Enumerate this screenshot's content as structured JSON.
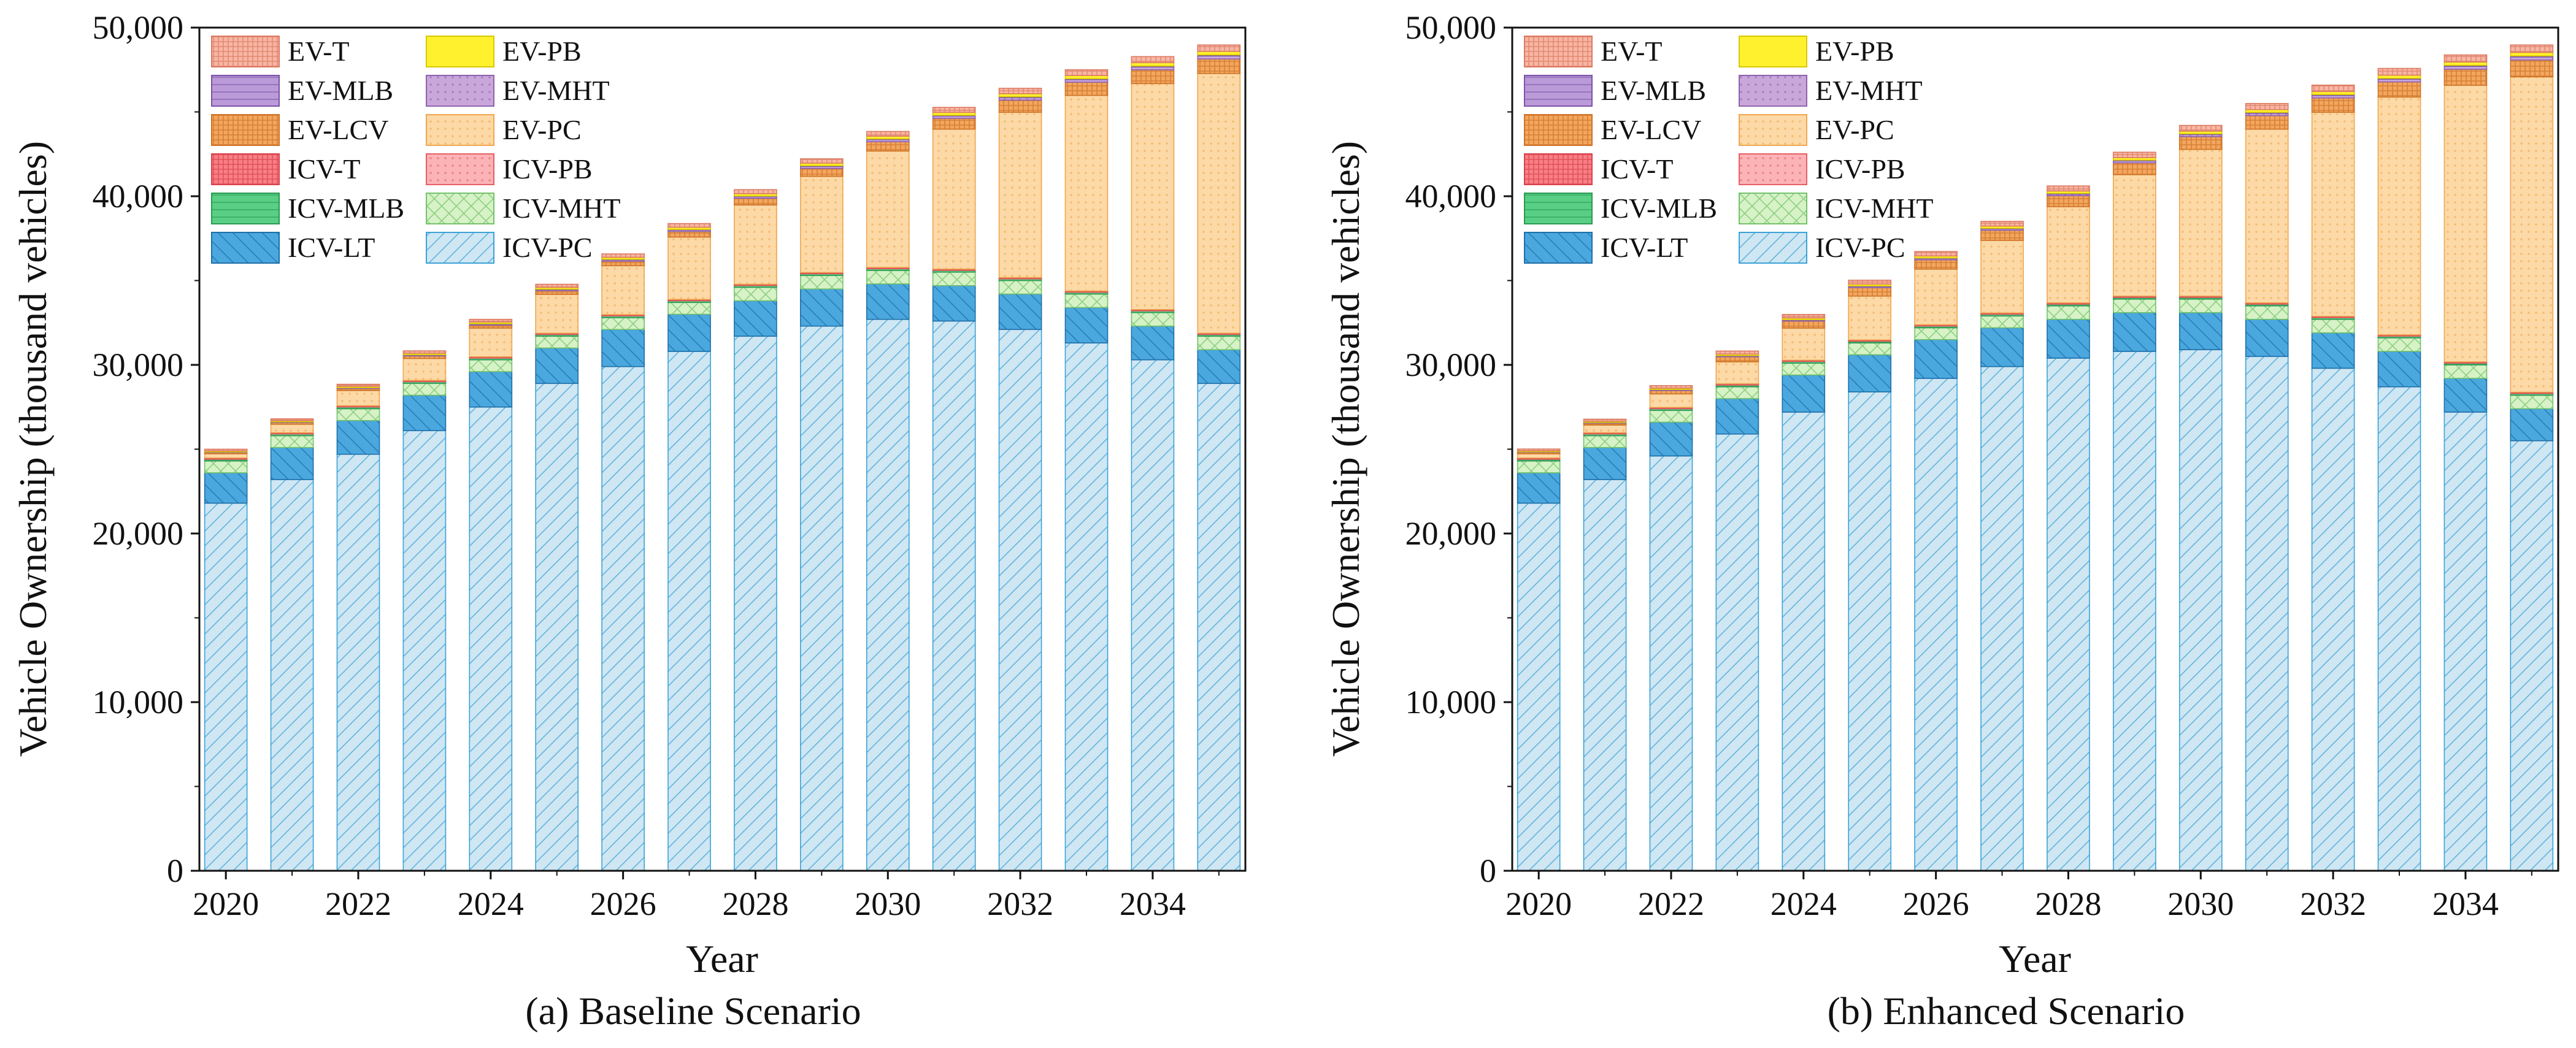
{
  "chart_data": [
    {
      "type": "bar",
      "stacked": true,
      "title": "(a) Baseline Scenario",
      "xlabel": "Year",
      "ylabel": "Vehicle Ownership (thousand vehicles)",
      "ylim": [
        0,
        50000
      ],
      "yticks": [
        "0",
        "10,000",
        "20,000",
        "30,000",
        "40,000",
        "50,000"
      ],
      "categories": [
        "2020",
        "2021",
        "2022",
        "2023",
        "2024",
        "2025",
        "2026",
        "2027",
        "2028",
        "2029",
        "2030",
        "2031",
        "2032",
        "2033",
        "2034",
        "2035"
      ],
      "xtick_labels": [
        "2020",
        "2022",
        "2024",
        "2026",
        "2028",
        "2030",
        "2032",
        "2034"
      ],
      "legend": [
        "EV-T",
        "EV-PB",
        "EV-MLB",
        "EV-MHT",
        "EV-LCV",
        "EV-PC",
        "ICV-T",
        "ICV-PB",
        "ICV-MLB",
        "ICV-MHT",
        "ICV-LT",
        "ICV-PC"
      ],
      "series": [
        {
          "name": "ICV-PC",
          "values": [
            21800,
            23200,
            24700,
            26100,
            27500,
            28900,
            29900,
            30800,
            31700,
            32300,
            32700,
            32600,
            32100,
            31300,
            30300,
            28900
          ]
        },
        {
          "name": "ICV-LT",
          "values": [
            1800,
            1900,
            2000,
            2100,
            2100,
            2100,
            2200,
            2200,
            2100,
            2200,
            2100,
            2100,
            2100,
            2100,
            2000,
            2000
          ]
        },
        {
          "name": "ICV-MHT",
          "values": [
            700,
            700,
            700,
            700,
            700,
            700,
            700,
            700,
            800,
            800,
            800,
            800,
            800,
            800,
            800,
            800
          ]
        },
        {
          "name": "ICV-MLB",
          "values": [
            100,
            100,
            100,
            100,
            100,
            100,
            100,
            100,
            100,
            100,
            100,
            100,
            100,
            100,
            100,
            100
          ]
        },
        {
          "name": "ICV-PB",
          "values": [
            50,
            50,
            50,
            50,
            50,
            50,
            50,
            50,
            50,
            50,
            50,
            50,
            50,
            50,
            50,
            50
          ]
        },
        {
          "name": "ICV-T",
          "values": [
            30,
            30,
            30,
            30,
            30,
            30,
            30,
            30,
            30,
            30,
            30,
            30,
            30,
            30,
            30,
            30
          ]
        },
        {
          "name": "EV-PC",
          "values": [
            250,
            500,
            900,
            1300,
            1700,
            2300,
            2900,
            3700,
            4700,
            5700,
            6900,
            8300,
            9800,
            11600,
            13400,
            15400
          ]
        },
        {
          "name": "EV-LCV",
          "values": [
            80,
            100,
            120,
            150,
            180,
            220,
            270,
            330,
            400,
            470,
            550,
            640,
            720,
            780,
            820,
            860
          ]
        },
        {
          "name": "EV-MHT",
          "values": [
            20,
            30,
            40,
            50,
            60,
            70,
            80,
            90,
            100,
            120,
            130,
            140,
            150,
            160,
            170,
            180
          ]
        },
        {
          "name": "EV-MLB",
          "values": [
            10,
            10,
            10,
            20,
            20,
            20,
            30,
            30,
            30,
            40,
            40,
            40,
            50,
            50,
            50,
            60
          ]
        },
        {
          "name": "EV-PB",
          "values": [
            60,
            70,
            80,
            90,
            100,
            110,
            120,
            130,
            140,
            150,
            160,
            170,
            180,
            190,
            200,
            210
          ]
        },
        {
          "name": "EV-T",
          "values": [
            100,
            110,
            120,
            140,
            160,
            180,
            200,
            220,
            240,
            260,
            280,
            300,
            320,
            340,
            360,
            380
          ]
        }
      ]
    },
    {
      "type": "bar",
      "stacked": true,
      "title": "(b) Enhanced Scenario",
      "xlabel": "Year",
      "ylabel": "Vehicle Ownership (thousand vehicles)",
      "ylim": [
        0,
        50000
      ],
      "yticks": [
        "0",
        "10,000",
        "20,000",
        "30,000",
        "40,000",
        "50,000"
      ],
      "categories": [
        "2020",
        "2021",
        "2022",
        "2023",
        "2024",
        "2025",
        "2026",
        "2027",
        "2028",
        "2029",
        "2030",
        "2031",
        "2032",
        "2033",
        "2034",
        "2035"
      ],
      "xtick_labels": [
        "2020",
        "2022",
        "2024",
        "2026",
        "2028",
        "2030",
        "2032",
        "2034"
      ],
      "legend": [
        "EV-T",
        "EV-PB",
        "EV-MLB",
        "EV-MHT",
        "EV-LCV",
        "EV-PC",
        "ICV-T",
        "ICV-PB",
        "ICV-MLB",
        "ICV-MHT",
        "ICV-LT",
        "ICV-PC"
      ],
      "series": [
        {
          "name": "ICV-PC",
          "values": [
            21800,
            23200,
            24600,
            25900,
            27200,
            28400,
            29200,
            29900,
            30400,
            30800,
            30900,
            30500,
            29800,
            28700,
            27200,
            25500
          ]
        },
        {
          "name": "ICV-LT",
          "values": [
            1800,
            1900,
            2000,
            2100,
            2200,
            2200,
            2300,
            2300,
            2300,
            2300,
            2200,
            2200,
            2100,
            2100,
            2000,
            1900
          ]
        },
        {
          "name": "ICV-MHT",
          "values": [
            700,
            700,
            700,
            700,
            700,
            700,
            700,
            700,
            800,
            800,
            800,
            800,
            800,
            800,
            800,
            800
          ]
        },
        {
          "name": "ICV-MLB",
          "values": [
            100,
            100,
            100,
            100,
            100,
            100,
            100,
            100,
            100,
            100,
            100,
            100,
            100,
            100,
            100,
            100
          ]
        },
        {
          "name": "ICV-PB",
          "values": [
            50,
            50,
            50,
            50,
            50,
            50,
            50,
            50,
            50,
            50,
            50,
            50,
            50,
            50,
            50,
            50
          ]
        },
        {
          "name": "ICV-T",
          "values": [
            30,
            30,
            30,
            30,
            30,
            30,
            30,
            30,
            30,
            30,
            30,
            30,
            30,
            30,
            30,
            30
          ]
        },
        {
          "name": "EV-PC",
          "values": [
            250,
            450,
            800,
            1300,
            1900,
            2600,
            3300,
            4300,
            5700,
            7200,
            8700,
            10300,
            12100,
            14100,
            16400,
            18700
          ]
        },
        {
          "name": "EV-LCV",
          "values": [
            90,
            120,
            200,
            300,
            420,
            500,
            550,
            600,
            650,
            700,
            750,
            800,
            850,
            900,
            950,
            1000
          ]
        },
        {
          "name": "EV-MHT",
          "values": [
            20,
            30,
            40,
            50,
            60,
            70,
            80,
            90,
            100,
            120,
            130,
            140,
            150,
            160,
            170,
            180
          ]
        },
        {
          "name": "EV-MLB",
          "values": [
            10,
            10,
            20,
            20,
            20,
            30,
            30,
            30,
            40,
            40,
            40,
            50,
            50,
            50,
            60,
            60
          ]
        },
        {
          "name": "EV-PB",
          "values": [
            60,
            70,
            80,
            90,
            100,
            110,
            120,
            130,
            140,
            150,
            160,
            170,
            180,
            190,
            200,
            210
          ]
        },
        {
          "name": "EV-T",
          "values": [
            100,
            120,
            150,
            180,
            210,
            230,
            260,
            280,
            300,
            320,
            340,
            360,
            380,
            400,
            420,
            440
          ]
        }
      ]
    }
  ],
  "series_colors": {
    "ICV-PC": {
      "fill": "#cfe6f3",
      "stroke": "#3ba3d6",
      "pattern": "fwd-hatch"
    },
    "ICV-LT": {
      "fill": "#4aa8df",
      "stroke": "#1f6fa8",
      "pattern": "back-hatch"
    },
    "ICV-MHT": {
      "fill": "#d6f2c6",
      "stroke": "#74c26b",
      "pattern": "cross-hatch"
    },
    "ICV-MLB": {
      "fill": "#58cf85",
      "stroke": "#2a9a53",
      "pattern": "horiz-lines"
    },
    "ICV-PB": {
      "fill": "#fbb3b6",
      "stroke": "#e65f66",
      "pattern": "dots"
    },
    "ICV-T": {
      "fill": "#f87f85",
      "stroke": "#d9424c",
      "pattern": "dense"
    },
    "EV-PC": {
      "fill": "#fcd9a6",
      "stroke": "#f0a64f",
      "pattern": "dots"
    },
    "EV-LCV": {
      "fill": "#f2a65e",
      "stroke": "#cf7326",
      "pattern": "dense"
    },
    "EV-MHT": {
      "fill": "#c9a7da",
      "stroke": "#8f62ad",
      "pattern": "dots"
    },
    "EV-MLB": {
      "fill": "#bb9ad8",
      "stroke": "#7a54a8",
      "pattern": "horiz-lines"
    },
    "EV-PB": {
      "fill": "#fff12e",
      "stroke": "#d8c800",
      "pattern": "none"
    },
    "EV-T": {
      "fill": "#f7b6a4",
      "stroke": "#dc7a62",
      "pattern": "dense"
    }
  }
}
